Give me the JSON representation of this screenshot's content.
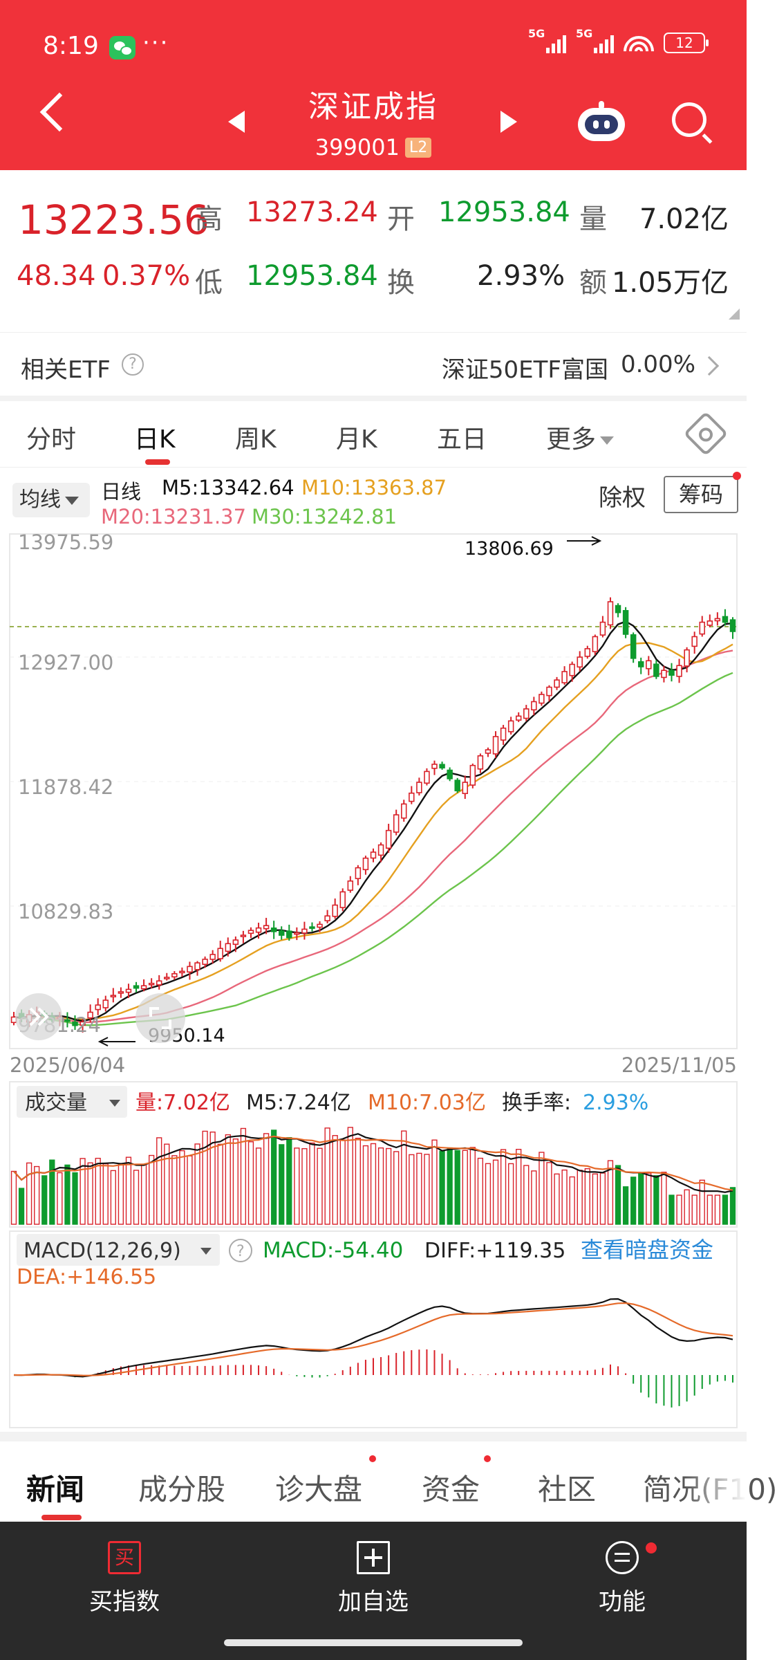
{
  "status_bar": {
    "time": "8:19",
    "more": "···",
    "signal_1": "5G",
    "signal_2": "5G",
    "battery": "12"
  },
  "header": {
    "title": "深证成指",
    "code": "399001",
    "level_badge": "L2"
  },
  "quote": {
    "price": "13223.56",
    "change": "48.34",
    "change_pct": "0.37%",
    "labels": {
      "high": "高",
      "low": "低",
      "open": "开",
      "turnover": "换",
      "volume": "量",
      "amount": "额"
    },
    "high": "13273.24",
    "low": "12953.84",
    "open": "12953.84",
    "turnover_rate": "2.93%",
    "volume": "7.02亿",
    "amount": "1.05万亿"
  },
  "etf": {
    "label": "相关ETF",
    "name": "深证50ETF富国",
    "change": "0.00%"
  },
  "period_tabs": [
    "分时",
    "日K",
    "周K",
    "月K",
    "五日",
    "更多"
  ],
  "ma_legend": {
    "button": "均线",
    "period": "日线",
    "m5": "M5:13342.64",
    "m10": "M10:13363.87",
    "m20": "M20:13231.37",
    "m30": "M30:13242.81",
    "chuquan": "除权",
    "chouma": "筹码"
  },
  "colors": {
    "up": "#d9222a",
    "down": "#0e9b2e",
    "m5": "#111111",
    "m10": "#e5a020",
    "m20": "#e8677a",
    "m30": "#6cc44c",
    "header": "#f0323a"
  },
  "chart_data": [
    {
      "type": "candlestick",
      "y_ticks": [
        "13975.59",
        "12927.00",
        "11878.42",
        "10829.83",
        "9781.24"
      ],
      "ylim": [
        9781.24,
        13975.59
      ],
      "x_labels": [
        "2025/06/04",
        "2025/11/05"
      ],
      "annotations": {
        "high": "13806.69",
        "low": "9950.14"
      },
      "close_series": [
        10020,
        10010,
        10040,
        10060,
        10030,
        10000,
        10020,
        9990,
        9950,
        9980,
        10060,
        10120,
        10160,
        10200,
        10230,
        10250,
        10260,
        10280,
        10300,
        10320,
        10350,
        10380,
        10400,
        10440,
        10470,
        10500,
        10540,
        10590,
        10630,
        10660,
        10700,
        10740,
        10760,
        10780,
        10730,
        10700,
        10680,
        10720,
        10750,
        10760,
        10790,
        10860,
        10950,
        11060,
        11150,
        11260,
        11340,
        11390,
        11450,
        11570,
        11700,
        11790,
        11880,
        11970,
        12060,
        12120,
        12090,
        12000,
        11900,
        11970,
        12110,
        12190,
        12240,
        12350,
        12420,
        12480,
        12520,
        12580,
        12640,
        12700,
        12760,
        12820,
        12890,
        12950,
        13010,
        13080,
        13180,
        13300,
        13470,
        13380,
        13200,
        13000,
        12930,
        12980,
        12850,
        12900,
        12860,
        12940,
        13070,
        13180,
        13300,
        13310,
        13330,
        13300,
        13223
      ]
    },
    {
      "type": "bar",
      "title": "成交量",
      "labels": {
        "vol": "量:7.02亿",
        "m5": "M5:7.24亿",
        "m10": "M10:7.03亿",
        "turnover_label": "换手率:",
        "turnover": "2.93%"
      }
    },
    {
      "type": "line",
      "title": "MACD(12,26,9)",
      "labels": {
        "macd": "MACD:-54.40",
        "diff": "DIFF:+119.35",
        "dea": "DEA:+146.55",
        "link": "查看暗盘资金"
      }
    }
  ],
  "news_tabs": [
    "新闻",
    "成分股",
    "诊大盘",
    "资金",
    "社区",
    "简况(F10)"
  ],
  "bottom_nav": {
    "buy": "买指数",
    "buy_glyph": "买",
    "add": "加自选",
    "func": "功能"
  }
}
